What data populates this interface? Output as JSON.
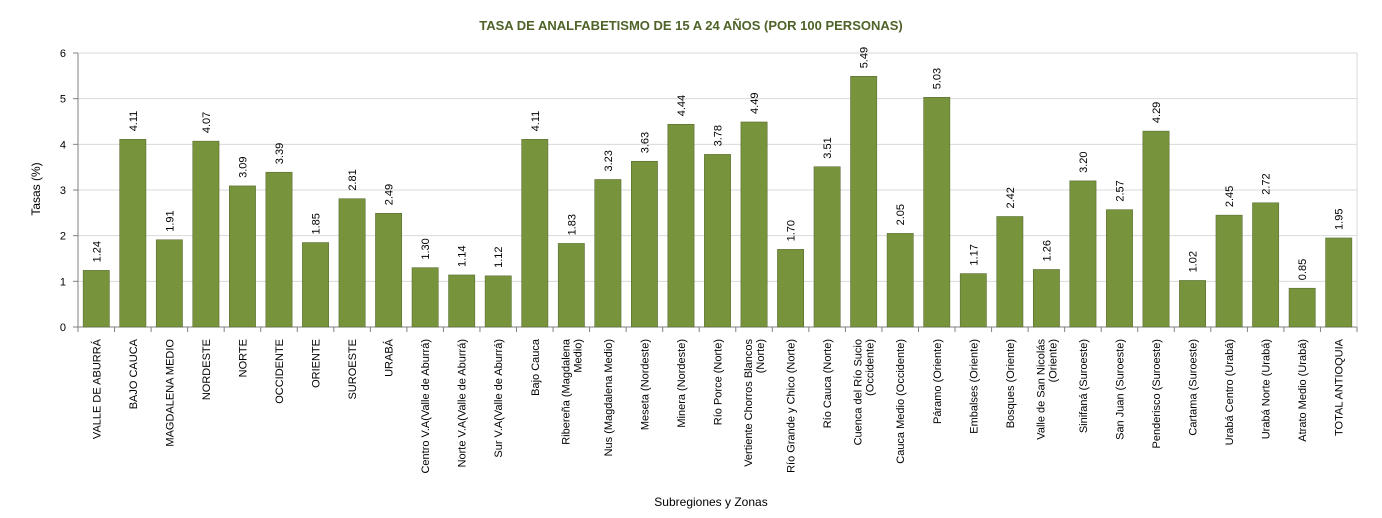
{
  "chart_data": {
    "type": "bar",
    "title": "TASA DE ANALFABETISMO DE 15 A 24 AÑOS (POR 100 PERSONAS)",
    "xlabel": "Subregiones y Zonas",
    "ylabel": "Tasas (%)",
    "ylim": [
      0,
      6
    ],
    "yticks": [
      "0",
      "1",
      "2",
      "3",
      "4",
      "5",
      "6"
    ],
    "grid": true,
    "legend": "none",
    "categories": [
      [
        "VALLE DE ABURRÁ"
      ],
      [
        "BAJO CAUCA"
      ],
      [
        "MAGDALENA MEDIO"
      ],
      [
        "NORDESTE"
      ],
      [
        "NORTE"
      ],
      [
        "OCCIDENTE"
      ],
      [
        "ORIENTE"
      ],
      [
        "SUROESTE"
      ],
      [
        "URABÁ"
      ],
      [
        "Centro V.A(Valle de Aburrá)"
      ],
      [
        "Norte V.A(Valle de Aburrá)"
      ],
      [
        "Sur V.A(Valle de Aburrá)"
      ],
      [
        "Bajo Cauca"
      ],
      [
        "Ribereña  (Magdalena",
        "Medio)"
      ],
      [
        "Nus  (Magdalena Medio)"
      ],
      [
        "Meseta  (Nordeste)"
      ],
      [
        "Minera  (Nordeste)"
      ],
      [
        "Río Porce   (Norte)"
      ],
      [
        "Vertiente Chorros Blancos",
        "(Norte)"
      ],
      [
        "Río Grande y Chico  (Norte)"
      ],
      [
        "Río Cauca  (Norte)"
      ],
      [
        "Cuenca del Río Sucio",
        "(Occidente)"
      ],
      [
        "Cauca Medio  (Occidente)"
      ],
      [
        "Páramo  (Oriente)"
      ],
      [
        "Embalses  (Oriente)"
      ],
      [
        "Bosques  (Oriente)"
      ],
      [
        "Valle de San Nicolás",
        "(Oriente)"
      ],
      [
        "Sinifaná  (Suroeste)"
      ],
      [
        "San Juan  (Suroeste)"
      ],
      [
        "Penderisco  (Suroeste)"
      ],
      [
        "Cartama  (Suroeste)"
      ],
      [
        "Urabá Centro  (Urabá)"
      ],
      [
        "Urabá Norte  (Urabá)"
      ],
      [
        "Atrato Medio  (Urabá)"
      ],
      [
        "TOTAL ANTIOQUIA"
      ]
    ],
    "values": [
      1.24,
      4.11,
      1.91,
      4.07,
      3.09,
      3.39,
      1.85,
      2.81,
      2.49,
      1.3,
      1.14,
      1.12,
      4.11,
      1.83,
      3.23,
      3.63,
      4.44,
      3.78,
      4.49,
      1.7,
      3.51,
      5.49,
      2.05,
      5.03,
      1.17,
      2.42,
      1.26,
      3.2,
      2.57,
      4.29,
      1.02,
      2.45,
      2.72,
      0.85,
      1.95
    ],
    "value_labels": [
      "1.24",
      "4.11",
      "1.91",
      "4.07",
      "3.09",
      "3.39",
      "1.85",
      "2.81",
      "2.49",
      "1.30",
      "1.14",
      "1.12",
      "4.11",
      "1.83",
      "3.23",
      "3.63",
      "4.44",
      "3.78",
      "4.49",
      "1.70",
      "3.51",
      "5.49",
      "2.05",
      "5.03",
      "1.17",
      "2.42",
      "1.26",
      "3.20",
      "2.57",
      "4.29",
      "1.02",
      "2.45",
      "2.72",
      "0.85",
      "1.95"
    ],
    "colors": {
      "bar": "#77933C",
      "bar_edge": "#4F6228",
      "title": "#4F6228",
      "grid": "#D9D9D9",
      "axis": "#808080"
    }
  }
}
